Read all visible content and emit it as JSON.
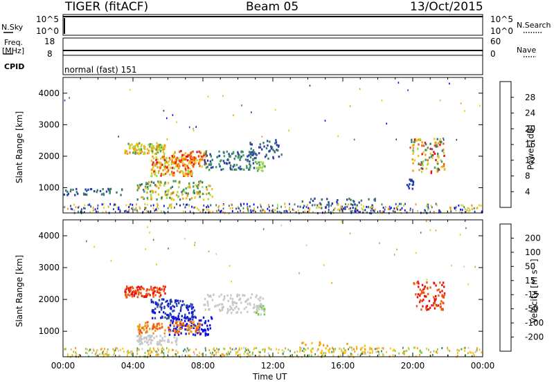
{
  "header": {
    "station": "TIGER (fitACF)",
    "beam": "Beam 05",
    "date": "13/Oct/2015"
  },
  "top_panels": {
    "nsky_label": "N.Sky",
    "nsearch_label": "N.Search",
    "nsky_ticks": [
      "10^5",
      "10^0"
    ],
    "nsearch_ticks": [
      "10^5",
      "10^0"
    ],
    "freq_label": "Freq.",
    "freq_unit": "[MHz]",
    "freq_ticks": [
      "18",
      "8"
    ],
    "nave_label": "Nave",
    "nave_ticks": [
      "60",
      "0"
    ],
    "cpid_label": "CPID",
    "cpid_text": "normal (fast) 151"
  },
  "chart_data": [
    {
      "type": "heatmap",
      "name": "power",
      "ylabel": "Slant Range [km]",
      "xlabel": "",
      "y_ticks": [
        "1000",
        "2000",
        "3000",
        "4000"
      ],
      "ylim": [
        200,
        4500
      ],
      "xlim": [
        0,
        24
      ],
      "colorbar_label": "Power [dB]",
      "colorbar_ticks": [
        "4",
        "8",
        "12",
        "16",
        "20",
        "24",
        "28"
      ],
      "colorbar_range": [
        0,
        32
      ],
      "colorbar_colors": [
        "#0000ff",
        "#2a3fa8",
        "#3c7a6e",
        "#3fa15a",
        "#a8d84a",
        "#f2c418",
        "#f29a18",
        "#f05a10",
        "#e81010"
      ]
    },
    {
      "type": "heatmap",
      "name": "velocity",
      "ylabel": "Slant Range [km]",
      "xlabel": "Time UT",
      "x_ticks": [
        "00:00",
        "04:00",
        "08:00",
        "12:00",
        "16:00",
        "20:00",
        "00:00"
      ],
      "y_ticks": [
        "1000",
        "2000",
        "3000",
        "4000"
      ],
      "ylim": [
        200,
        4500
      ],
      "xlim": [
        0,
        24
      ],
      "colorbar_label": "Velocity [m s⁻¹]",
      "colorbar_ticks": [
        "200",
        "100",
        "50",
        "15",
        "-15",
        "-50",
        "-100",
        "-200"
      ],
      "colorbar_colors": [
        "#1010e0",
        "#2a4fa8",
        "#3f8a5a",
        "#7ccc3a",
        "#c8c8c8",
        "#f2c418",
        "#f29a18",
        "#f05a10",
        "#e81010"
      ]
    }
  ]
}
